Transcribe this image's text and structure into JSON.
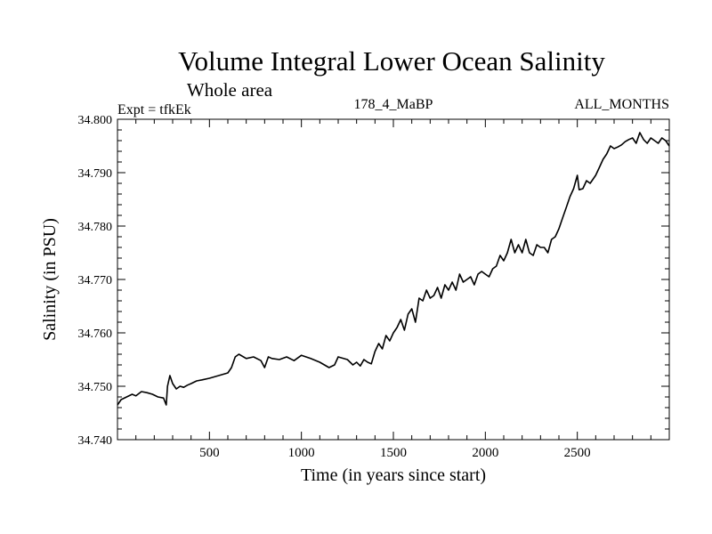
{
  "chart_data": {
    "type": "line",
    "title": "Volume Integral Lower Ocean Salinity",
    "subtitle": "Whole area",
    "annotations": {
      "experiment": "Expt = tfkEk",
      "run": "178_4_MaBP",
      "months": "ALL_MONTHS"
    },
    "xlabel": "Time (in years since start)",
    "ylabel": "Salinity (in PSU)",
    "xlim": [
      0,
      3000
    ],
    "ylim": [
      34.74,
      34.8
    ],
    "x_ticks": [
      500,
      1000,
      1500,
      2000,
      2500
    ],
    "x_tick_labels": [
      "500",
      "1000",
      "1500",
      "2000",
      "2500"
    ],
    "y_ticks": [
      34.74,
      34.75,
      34.76,
      34.77,
      34.78,
      34.79,
      34.8
    ],
    "y_tick_labels": [
      "34.740",
      "34.750",
      "34.760",
      "34.770",
      "34.780",
      "34.790",
      "34.800"
    ],
    "grid": false,
    "line_color": "#000000",
    "series": [
      {
        "x": [
          0,
          20,
          50,
          80,
          100,
          130,
          160,
          190,
          220,
          250,
          265,
          272,
          285,
          300,
          320,
          340,
          360,
          380,
          400,
          430,
          460,
          500,
          550,
          600,
          620,
          640,
          660,
          700,
          740,
          780,
          800,
          820,
          840,
          880,
          920,
          960,
          1000,
          1050,
          1100,
          1150,
          1180,
          1200,
          1250,
          1280,
          1300,
          1320,
          1340,
          1360,
          1380,
          1400,
          1420,
          1440,
          1460,
          1480,
          1500,
          1520,
          1540,
          1560,
          1580,
          1600,
          1620,
          1640,
          1660,
          1680,
          1700,
          1720,
          1740,
          1760,
          1780,
          1800,
          1820,
          1840,
          1860,
          1880,
          1900,
          1920,
          1940,
          1960,
          1980,
          2000,
          2020,
          2040,
          2060,
          2080,
          2100,
          2120,
          2140,
          2160,
          2180,
          2200,
          2220,
          2240,
          2260,
          2280,
          2300,
          2320,
          2340,
          2360,
          2380,
          2400,
          2420,
          2440,
          2460,
          2480,
          2500,
          2510,
          2530,
          2550,
          2570,
          2600,
          2620,
          2640,
          2660,
          2680,
          2700,
          2720,
          2740,
          2760,
          2780,
          2800,
          2820,
          2840,
          2860,
          2880,
          2900,
          2920,
          2940,
          2960,
          2980,
          3000
        ],
        "y": [
          34.7465,
          34.7475,
          34.748,
          34.7485,
          34.7482,
          34.749,
          34.7488,
          34.7485,
          34.748,
          34.7478,
          34.7465,
          34.75,
          34.752,
          34.7505,
          34.7495,
          34.75,
          34.7498,
          34.7502,
          34.7505,
          34.751,
          34.7512,
          34.7515,
          34.752,
          34.7525,
          34.7535,
          34.7555,
          34.756,
          34.7552,
          34.7555,
          34.7548,
          34.7535,
          34.7555,
          34.7552,
          34.755,
          34.7555,
          34.7548,
          34.7558,
          34.7552,
          34.7545,
          34.7535,
          34.754,
          34.7555,
          34.755,
          34.754,
          34.7545,
          34.7538,
          34.755,
          34.7545,
          34.7542,
          34.7565,
          34.758,
          34.757,
          34.7595,
          34.7585,
          34.76,
          34.761,
          34.7625,
          34.7605,
          34.7635,
          34.7645,
          34.762,
          34.7665,
          34.766,
          34.768,
          34.7665,
          34.767,
          34.7685,
          34.7665,
          34.769,
          34.768,
          34.7695,
          34.768,
          34.771,
          34.7695,
          34.77,
          34.7705,
          34.769,
          34.771,
          34.7715,
          34.771,
          34.7705,
          34.772,
          34.7725,
          34.7745,
          34.7735,
          34.775,
          34.7775,
          34.775,
          34.7765,
          34.775,
          34.7775,
          34.775,
          34.7745,
          34.7765,
          34.776,
          34.776,
          34.775,
          34.7775,
          34.778,
          34.7795,
          34.7815,
          34.7835,
          34.7855,
          34.787,
          34.7895,
          34.7868,
          34.787,
          34.7885,
          34.788,
          34.7895,
          34.791,
          34.7925,
          34.7935,
          34.795,
          34.7945,
          34.7948,
          34.7952,
          34.7958,
          34.7962,
          34.7965,
          34.7955,
          34.7975,
          34.7962,
          34.7955,
          34.7965,
          34.796,
          34.7955,
          34.7965,
          34.796,
          34.795
        ]
      }
    ]
  }
}
